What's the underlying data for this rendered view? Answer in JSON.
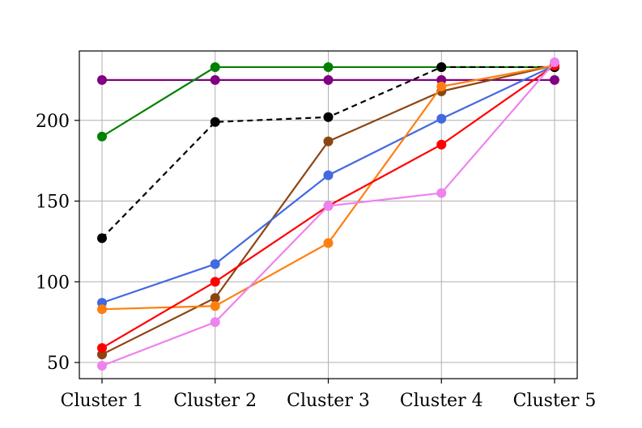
{
  "chart_data": {
    "type": "line",
    "title": "",
    "xlabel": "",
    "ylabel": "",
    "categories": [
      "Cluster 1",
      "Cluster 2",
      "Cluster 3",
      "Cluster 4",
      "Cluster 5"
    ],
    "ylim": [
      40,
      243
    ],
    "yticks": [
      50,
      100,
      150,
      200
    ],
    "grid": true,
    "series": [
      {
        "name": "purple",
        "color": "#800080",
        "dash": false,
        "values": [
          225,
          225,
          225,
          225,
          225
        ]
      },
      {
        "name": "green",
        "color": "#008000",
        "dash": false,
        "values": [
          190,
          233,
          233,
          233,
          233
        ]
      },
      {
        "name": "black",
        "color": "#000000",
        "dash": true,
        "values": [
          127,
          199,
          202,
          233,
          233
        ]
      },
      {
        "name": "brown",
        "color": "#8b4513",
        "dash": false,
        "values": [
          55,
          90,
          187,
          218,
          234
        ]
      },
      {
        "name": "royalblue",
        "color": "#4169e1",
        "dash": false,
        "values": [
          87,
          111,
          166,
          201,
          234
        ]
      },
      {
        "name": "orange",
        "color": "#ff7f0e",
        "dash": false,
        "values": [
          83,
          85,
          124,
          221,
          234
        ]
      },
      {
        "name": "red",
        "color": "#ff0000",
        "dash": false,
        "values": [
          59,
          100,
          147,
          185,
          234
        ]
      },
      {
        "name": "violet",
        "color": "#ee82ee",
        "dash": false,
        "values": [
          48,
          75,
          147,
          155,
          236
        ]
      }
    ]
  }
}
